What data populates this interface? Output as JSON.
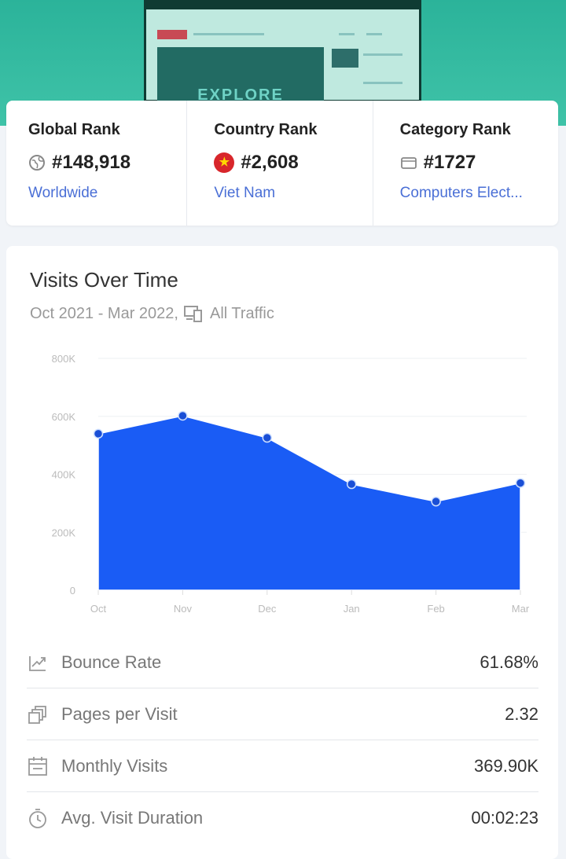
{
  "ranks": [
    {
      "title": "Global Rank",
      "value": "#148,918",
      "sub": "Worldwide",
      "icon": "globe-icon"
    },
    {
      "title": "Country Rank",
      "value": "#2,608",
      "sub": "Viet Nam",
      "icon": "vietnam-flag-icon"
    },
    {
      "title": "Category Rank",
      "value": "#1727",
      "sub": "Computers Elect...",
      "icon": "category-icon"
    }
  ],
  "visits": {
    "title": "Visits Over Time",
    "range": "Oct 2021 - Mar 2022,",
    "traffic": "All Traffic"
  },
  "preview": {
    "banner_text": "EXPLORE"
  },
  "chart_data": {
    "type": "area",
    "categories": [
      "Oct",
      "Nov",
      "Dec",
      "Jan",
      "Feb",
      "Mar"
    ],
    "values": [
      540000,
      602000,
      526000,
      366000,
      306000,
      370000
    ],
    "yticks": [
      "0",
      "200K",
      "400K",
      "600K",
      "800K"
    ],
    "ylim": [
      0,
      800000
    ],
    "grid": true,
    "color": "#1a5cf5"
  },
  "metrics": [
    {
      "label": "Bounce Rate",
      "value": "61.68%",
      "icon": "bounce-rate-icon"
    },
    {
      "label": "Pages per Visit",
      "value": "2.32",
      "icon": "pages-icon"
    },
    {
      "label": "Monthly Visits",
      "value": "369.90K",
      "icon": "calendar-icon"
    },
    {
      "label": "Avg. Visit Duration",
      "value": "00:02:23",
      "icon": "timer-icon"
    }
  ]
}
